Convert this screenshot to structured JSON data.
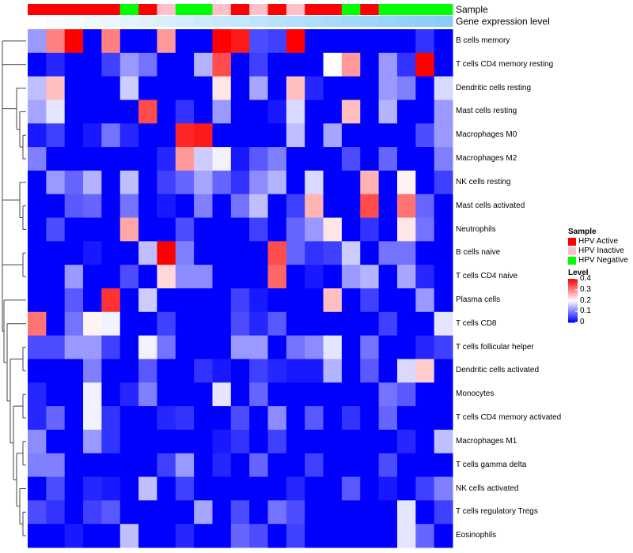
{
  "chart_data": {
    "type": "heatmap",
    "annotation_tracks": [
      "Sample",
      "Gene expression level"
    ],
    "sample_groups": {
      "title": "Sample",
      "levels": [
        {
          "name": "HPV Active",
          "color": "#ff0000"
        },
        {
          "name": "HPV Inactive",
          "color": "#ffc0cb"
        },
        {
          "name": "HPV Negative",
          "color": "#00ff00"
        }
      ],
      "per_column": [
        "HPV Active",
        "HPV Active",
        "HPV Active",
        "HPV Active",
        "HPV Active",
        "HPV Negative",
        "HPV Active",
        "HPV Inactive",
        "HPV Negative",
        "HPV Negative",
        "HPV Inactive",
        "HPV Active",
        "HPV Inactive",
        "HPV Active",
        "HPV Inactive",
        "HPV Active",
        "HPV Active",
        "HPV Negative",
        "HPV Active",
        "HPV Negative",
        "HPV Negative",
        "HPV Negative",
        "HPV Negative"
      ]
    },
    "gene_expression_level": {
      "low_color": "#ffffff",
      "high_color": "#87cefa",
      "per_column": [
        0.0,
        0.045,
        0.09,
        0.136,
        0.182,
        0.227,
        0.273,
        0.318,
        0.364,
        0.409,
        0.455,
        0.5,
        0.545,
        0.591,
        0.636,
        0.682,
        0.727,
        0.773,
        0.818,
        0.864,
        0.909,
        0.955,
        1.0
      ]
    },
    "rows": [
      "B cells memory",
      "T cells CD4 memory resting",
      "Dendritic cells resting",
      "Mast cells resting",
      "Macrophages M0",
      "Macrophages M2",
      "NK cells resting",
      "Mast cells activated",
      "Neutrophils",
      "B cells naive",
      "T cells CD4 naive",
      "Plasma cells",
      "T cells CD8",
      "T cells follicular helper",
      "Dendritic cells activated",
      "Monocytes",
      "T cells CD4 memory activated",
      "Macrophages M1",
      "T cells gamma delta",
      "NK cells activated",
      "T cells regulatory  Tregs",
      "Eosinophils"
    ],
    "values": [
      [
        0.12,
        0.3,
        0.4,
        0.0,
        0.3,
        0.0,
        0.0,
        0.28,
        0.0,
        0.0,
        0.4,
        0.38,
        0.06,
        0.05,
        0.4,
        0.0,
        0.0,
        0.0,
        0.0,
        0.0,
        0.0,
        0.04,
        0.0
      ],
      [
        0.0,
        0.03,
        0.0,
        0.0,
        0.05,
        0.12,
        0.09,
        0.0,
        0.0,
        0.14,
        0.34,
        0.0,
        0.05,
        0.0,
        0.0,
        0.0,
        0.2,
        0.28,
        0.0,
        0.12,
        0.04,
        0.4,
        0.0
      ],
      [
        0.15,
        0.25,
        0.0,
        0.0,
        0.0,
        0.16,
        0.0,
        0.0,
        0.0,
        0.0,
        0.22,
        0.0,
        0.13,
        0.0,
        0.25,
        0.03,
        0.0,
        0.0,
        0.0,
        0.12,
        0.1,
        0.0,
        0.17
      ],
      [
        0.13,
        0.18,
        0.0,
        0.0,
        0.0,
        0.0,
        0.34,
        0.0,
        0.04,
        0.0,
        0.12,
        0.0,
        0.0,
        0.02,
        0.17,
        0.0,
        0.0,
        0.25,
        0.0,
        0.14,
        0.0,
        0.0,
        0.12
      ],
      [
        0.02,
        0.05,
        0.0,
        0.02,
        0.09,
        0.03,
        0.0,
        0.0,
        0.37,
        0.38,
        0.0,
        0.0,
        0.0,
        0.0,
        0.15,
        0.0,
        0.13,
        0.0,
        0.0,
        0.0,
        0.0,
        0.06,
        0.12
      ],
      [
        0.1,
        0.0,
        0.0,
        0.0,
        0.0,
        0.0,
        0.0,
        0.03,
        0.28,
        0.16,
        0.19,
        0.02,
        0.07,
        0.1,
        0.0,
        0.0,
        0.0,
        0.06,
        0.0,
        0.08,
        0.0,
        0.0,
        0.1
      ],
      [
        0.0,
        0.12,
        0.08,
        0.14,
        0.0,
        0.15,
        0.0,
        0.05,
        0.08,
        0.13,
        0.08,
        0.04,
        0.11,
        0.14,
        0.0,
        0.17,
        0.0,
        0.0,
        0.26,
        0.0,
        0.21,
        0.0,
        0.05
      ],
      [
        0.0,
        0.0,
        0.07,
        0.08,
        0.0,
        0.09,
        0.0,
        0.02,
        0.0,
        0.1,
        0.0,
        0.09,
        0.15,
        0.0,
        0.05,
        0.26,
        0.0,
        0.0,
        0.34,
        0.0,
        0.31,
        0.08,
        0.0
      ],
      [
        0.0,
        0.06,
        0.0,
        0.0,
        0.0,
        0.27,
        0.0,
        0.0,
        0.06,
        0.0,
        0.0,
        0.0,
        0.05,
        0.0,
        0.08,
        0.12,
        0.22,
        0.0,
        0.04,
        0.0,
        0.22,
        0.09,
        0.0
      ],
      [
        0.0,
        0.0,
        0.0,
        0.02,
        0.0,
        0.0,
        0.15,
        0.4,
        0.1,
        0.0,
        0.0,
        0.0,
        0.0,
        0.34,
        0.08,
        0.04,
        0.05,
        0.16,
        0.0,
        0.09,
        0.09,
        0.0,
        0.0
      ],
      [
        0.0,
        0.0,
        0.12,
        0.0,
        0.0,
        0.06,
        0.0,
        0.23,
        0.11,
        0.11,
        0.0,
        0.0,
        0.0,
        0.32,
        0.0,
        0.02,
        0.0,
        0.12,
        0.14,
        0.0,
        0.13,
        0.03,
        0.0
      ],
      [
        0.0,
        0.0,
        0.07,
        0.0,
        0.36,
        0.0,
        0.16,
        0.0,
        0.0,
        0.0,
        0.0,
        0.05,
        0.02,
        0.0,
        0.0,
        0.0,
        0.25,
        0.0,
        0.05,
        0.0,
        0.0,
        0.12,
        0.0
      ],
      [
        0.31,
        0.0,
        0.09,
        0.21,
        0.19,
        0.0,
        0.0,
        0.05,
        0.0,
        0.0,
        0.0,
        0.06,
        0.03,
        0.07,
        0.0,
        0.0,
        0.0,
        0.0,
        0.0,
        0.05,
        0.0,
        0.0,
        0.18
      ],
      [
        0.06,
        0.06,
        0.12,
        0.12,
        0.05,
        0.0,
        0.19,
        0.09,
        0.0,
        0.0,
        0.0,
        0.12,
        0.12,
        0.0,
        0.09,
        0.11,
        0.18,
        0.0,
        0.09,
        0.0,
        0.0,
        0.03,
        0.05
      ],
      [
        0.0,
        0.0,
        0.0,
        0.1,
        0.0,
        0.0,
        0.07,
        0.0,
        0.0,
        0.04,
        0.02,
        0.0,
        0.05,
        0.03,
        0.02,
        0.02,
        0.14,
        0.0,
        0.07,
        0.0,
        0.17,
        0.24,
        0.0
      ],
      [
        0.03,
        0.0,
        0.0,
        0.19,
        0.0,
        0.03,
        0.1,
        0.0,
        0.0,
        0.0,
        0.18,
        0.0,
        0.08,
        0.0,
        0.0,
        0.0,
        0.0,
        0.0,
        0.0,
        0.09,
        0.07,
        0.0,
        0.0
      ],
      [
        0.03,
        0.08,
        0.0,
        0.19,
        0.04,
        0.0,
        0.0,
        0.03,
        0.04,
        0.0,
        0.0,
        0.06,
        0.0,
        0.11,
        0.0,
        0.07,
        0.0,
        0.04,
        0.0,
        0.08,
        0.0,
        0.0,
        0.0
      ],
      [
        0.11,
        0.0,
        0.0,
        0.12,
        0.04,
        0.0,
        0.0,
        0.0,
        0.0,
        0.0,
        0.02,
        0.04,
        0.0,
        0.05,
        0.0,
        0.0,
        0.0,
        0.0,
        0.0,
        0.0,
        0.03,
        0.0,
        0.15
      ],
      [
        0.1,
        0.1,
        0.0,
        0.0,
        0.0,
        0.0,
        0.0,
        0.05,
        0.12,
        0.0,
        0.03,
        0.0,
        0.08,
        0.0,
        0.0,
        0.05,
        0.0,
        0.0,
        0.0,
        0.06,
        0.0,
        0.0,
        0.0
      ],
      [
        0.0,
        0.06,
        0.0,
        0.03,
        0.02,
        0.0,
        0.15,
        0.0,
        0.05,
        0.0,
        0.0,
        0.0,
        0.0,
        0.0,
        0.03,
        0.0,
        0.0,
        0.07,
        0.0,
        0.02,
        0.0,
        0.05,
        0.1
      ],
      [
        0.06,
        0.04,
        0.0,
        0.05,
        0.07,
        0.0,
        0.0,
        0.0,
        0.0,
        0.13,
        0.0,
        0.06,
        0.0,
        0.09,
        0.06,
        0.0,
        0.0,
        0.0,
        0.0,
        0.0,
        0.18,
        0.0,
        0.05
      ],
      [
        0.0,
        0.0,
        0.02,
        0.0,
        0.0,
        0.15,
        0.0,
        0.0,
        0.03,
        0.0,
        0.0,
        0.08,
        0.06,
        0.0,
        0.05,
        0.0,
        0.0,
        0.0,
        0.0,
        0.0,
        0.18,
        0.08,
        0.0
      ]
    ],
    "color_scale": {
      "title": "Level",
      "min": 0,
      "max": 0.4,
      "stops": [
        {
          "value": 0,
          "color": "#0000ff"
        },
        {
          "value": 0.2,
          "color": "#ffffff"
        },
        {
          "value": 0.4,
          "color": "#ff0000"
        }
      ],
      "ticks": [
        "0.4",
        "0.3",
        "0.2",
        "0.1",
        "0"
      ]
    },
    "row_dendrogram": true,
    "column_dendrogram": false
  }
}
